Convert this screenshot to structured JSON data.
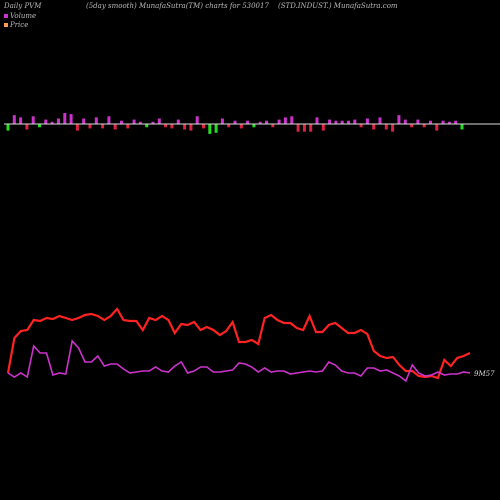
{
  "header": {
    "left": "Daily PVM",
    "middle": "(5day smooth) MunafaSutra(TM) charts for 530017",
    "right": "(STD.INDUST.) MunafaSutra.com"
  },
  "legend": [
    {
      "label": "Volume",
      "color": "#cc33cc"
    },
    {
      "label": "Price",
      "color": "#ff9955"
    }
  ],
  "colors": {
    "volume_up": "#cc33cc",
    "volume_down": "#dd2244",
    "volume_green": "#22dd22",
    "price": "#ff2222",
    "pvm": "#cc33cc",
    "baseline": "#dddddd"
  },
  "chart_data": [
    {
      "type": "bar",
      "name": "volume",
      "units": "relative",
      "values": [
        -0.6,
        0.8,
        0.6,
        -0.5,
        0.7,
        -0.3,
        0.4,
        0.2,
        0.5,
        1.0,
        0.9,
        -0.6,
        0.5,
        -0.4,
        0.6,
        -0.4,
        0.7,
        -0.5,
        0.3,
        -0.4,
        0.4,
        0.2,
        -0.3,
        0.2,
        0.5,
        -0.3,
        -0.4,
        0.4,
        -0.5,
        -0.6,
        0.7,
        -0.4,
        -0.9,
        -0.8,
        0.5,
        -0.3,
        0.3,
        -0.4,
        0.3,
        -0.3,
        0.2,
        0.3,
        -0.3,
        0.4,
        0.6,
        0.7,
        -0.7,
        -0.7,
        -0.7,
        0.6,
        -0.6,
        0.4,
        0.3,
        0.3,
        0.3,
        0.4,
        -0.3,
        0.5,
        -0.5,
        0.6,
        -0.5,
        -0.7,
        0.8,
        0.4,
        -0.3,
        0.4,
        -0.3,
        0.3,
        -0.6,
        0.3,
        0.2,
        0.3,
        -0.5
      ]
    },
    {
      "type": "line",
      "series": [
        {
          "name": "Price",
          "values": [
            373,
            338,
            331,
            330,
            320,
            321,
            318,
            319,
            316,
            318,
            320,
            318,
            315,
            314,
            316,
            320,
            316,
            309,
            320,
            321,
            321,
            330,
            318,
            320,
            316,
            320,
            333,
            324,
            325,
            322,
            330,
            327,
            330,
            335,
            331,
            322,
            342,
            342,
            340,
            344,
            318,
            315,
            320,
            323,
            323,
            328,
            330,
            316,
            332,
            332,
            325,
            323,
            328,
            333,
            333,
            330,
            334,
            351,
            356,
            358,
            357,
            365,
            371,
            371,
            376,
            377,
            376,
            378,
            360,
            366,
            358,
            356,
            353
          ]
        },
        {
          "name": "PVM",
          "values": [
            373,
            377,
            373,
            377,
            346,
            353,
            353,
            375,
            373,
            374,
            341,
            348,
            362,
            362,
            356,
            366,
            364,
            364,
            369,
            373,
            372,
            371,
            371,
            367,
            371,
            372,
            366,
            362,
            373,
            371,
            367,
            367,
            372,
            372,
            371,
            370,
            363,
            364,
            367,
            372,
            368,
            372,
            371,
            371,
            374,
            373,
            372,
            371,
            372,
            371,
            362,
            365,
            371,
            373,
            373,
            376,
            368,
            368,
            371,
            370,
            373,
            376,
            381,
            365,
            373,
            376,
            375,
            372,
            375,
            374,
            374,
            372,
            373
          ]
        }
      ],
      "end_label": "9M57"
    }
  ]
}
